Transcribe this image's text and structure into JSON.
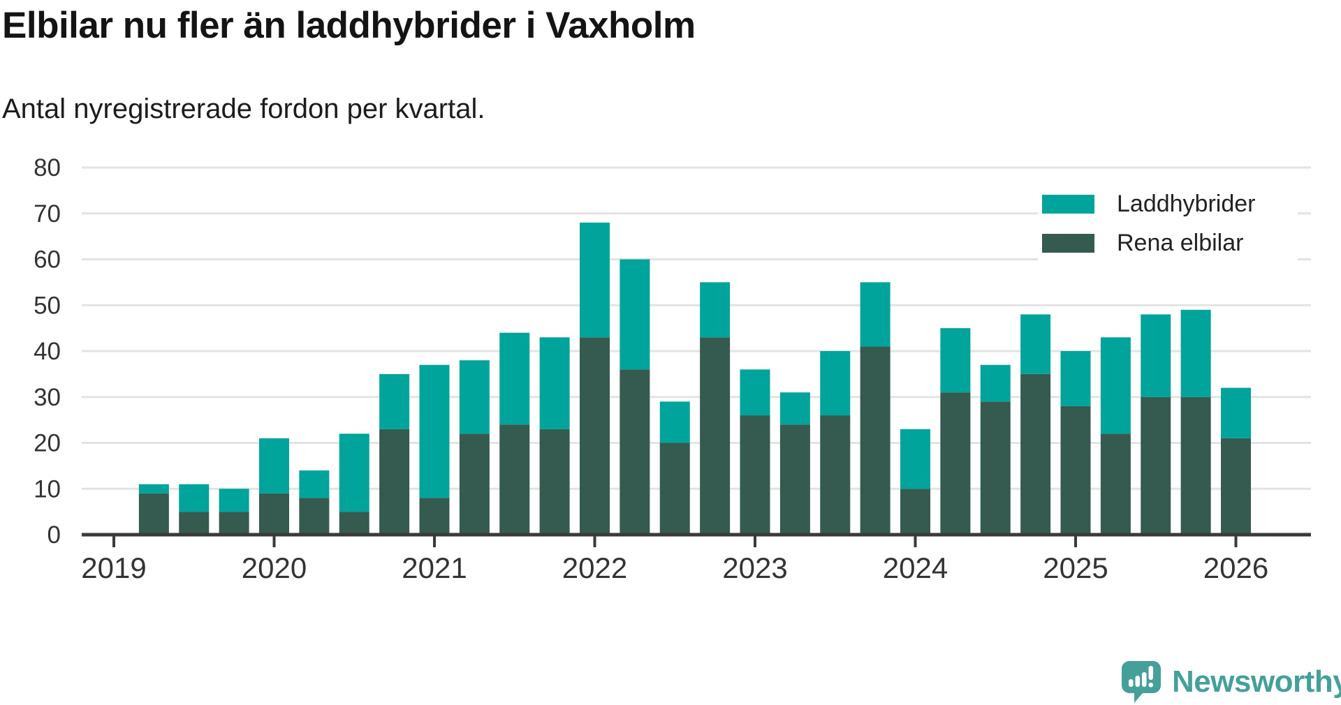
{
  "header": {
    "title": "Elbilar nu fler än laddhybrider i Vaxholm",
    "subtitle": "Antal nyregistrerade fordon per kvartal."
  },
  "chart_data": {
    "type": "bar",
    "stacked": true,
    "title": "Elbilar nu fler än laddhybrider i Vaxholm",
    "subtitle": "Antal nyregistrerade fordon per kvartal.",
    "categories": [
      "2019 Q2",
      "2019 Q3",
      "2019 Q4",
      "2020 Q1",
      "2020 Q2",
      "2020 Q3",
      "2020 Q4",
      "2021 Q1",
      "2021 Q2",
      "2021 Q3",
      "2021 Q4",
      "2022 Q1",
      "2022 Q2",
      "2022 Q3",
      "2022 Q4",
      "2023 Q1",
      "2023 Q2",
      "2023 Q3",
      "2023 Q4",
      "2024 Q1",
      "2024 Q2",
      "2024 Q3",
      "2024 Q4",
      "2025 Q1",
      "2025 Q2",
      "2025 Q3",
      "2025 Q4",
      "2026 Q1"
    ],
    "series": [
      {
        "name": "Laddhybrider",
        "color": "#00a49a",
        "values": [
          2,
          6,
          5,
          12,
          6,
          17,
          12,
          29,
          16,
          20,
          20,
          25,
          24,
          9,
          12,
          10,
          7,
          14,
          14,
          13,
          14,
          8,
          13,
          12,
          21,
          18,
          19,
          11
        ]
      },
      {
        "name": "Rena elbilar",
        "color": "#355a50",
        "values": [
          9,
          5,
          5,
          9,
          8,
          5,
          23,
          8,
          22,
          24,
          23,
          43,
          36,
          20,
          43,
          26,
          24,
          26,
          41,
          10,
          31,
          29,
          35,
          28,
          22,
          30,
          30,
          21
        ]
      }
    ],
    "stack_bottom_to_top": [
      "Rena elbilar",
      "Laddhybrider"
    ],
    "totals": [
      11,
      11,
      10,
      21,
      14,
      22,
      35,
      37,
      38,
      44,
      43,
      68,
      60,
      29,
      55,
      36,
      31,
      40,
      55,
      23,
      45,
      37,
      48,
      40,
      43,
      48,
      49,
      32
    ],
    "x_axis": {
      "tick_labels": [
        "2019",
        "2020",
        "2021",
        "2022",
        "2023",
        "2024",
        "2025",
        "2026"
      ],
      "bars_per_year": 4,
      "first_bar_offset_quarters": 1
    },
    "y_axis": {
      "min": 0,
      "max": 80,
      "tick_step": 10,
      "tick_labels": [
        "0",
        "10",
        "20",
        "30",
        "40",
        "50",
        "60",
        "70",
        "80"
      ]
    },
    "legend_position": "top-right",
    "grid": "horizontal",
    "grid_color": "#e3e3e3",
    "axis_color": "#3a3a3a",
    "label_color": "#333333"
  },
  "footer": {
    "brand": "Newsworthy"
  }
}
